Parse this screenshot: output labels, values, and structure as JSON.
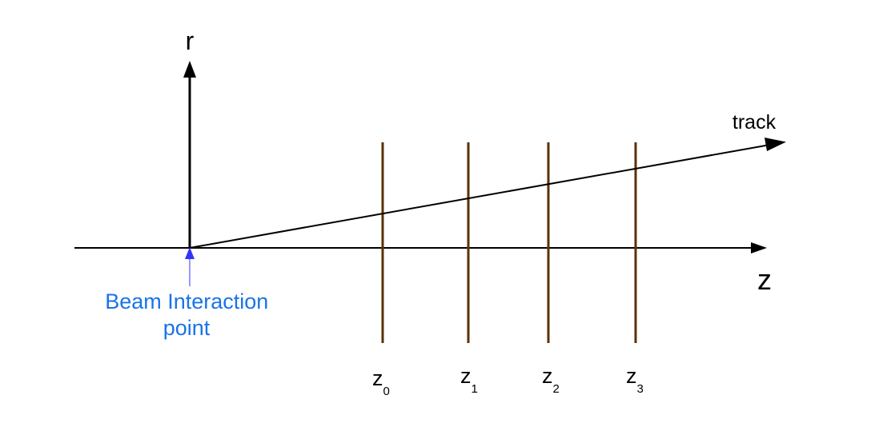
{
  "axes": {
    "vertical_label": "r",
    "horizontal_label": "z"
  },
  "track": {
    "label": "track"
  },
  "beam_point": {
    "label_line1": "Beam Interaction",
    "label_line2": "point"
  },
  "planes": [
    {
      "base": "z",
      "sub": "0"
    },
    {
      "base": "z",
      "sub": "1"
    },
    {
      "base": "z",
      "sub": "2"
    },
    {
      "base": "z",
      "sub": "3"
    }
  ],
  "colors": {
    "axis": "#000000",
    "track": "#000000",
    "plane": "#5a3206",
    "beam_label": "#1a73e8",
    "beam_arrow": "#3333ff"
  }
}
